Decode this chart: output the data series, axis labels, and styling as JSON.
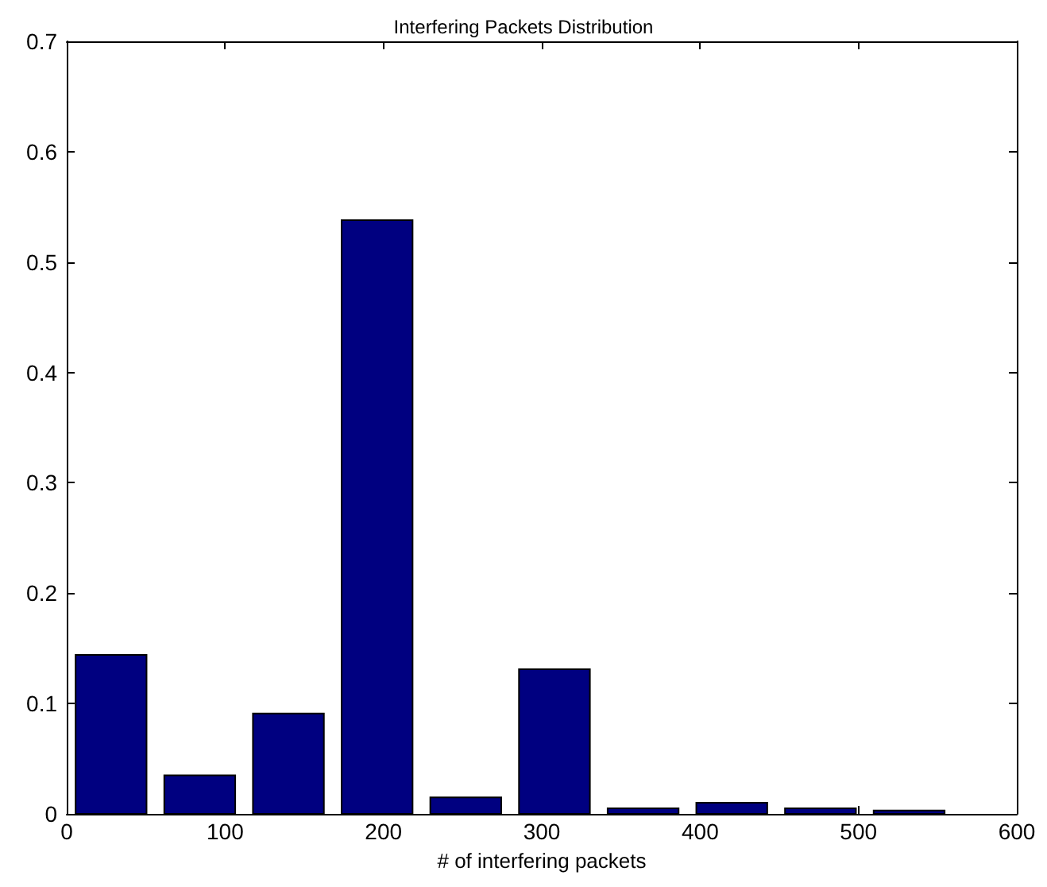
{
  "chart_data": {
    "type": "histogram",
    "title": "Interfering Packets Distribution",
    "xlabel": "# of interfering packets",
    "bins": [
      0,
      56,
      112,
      168,
      224,
      280,
      336,
      392,
      448,
      504,
      560
    ],
    "values": [
      0.144,
      0.035,
      0.091,
      0.538,
      0.015,
      0.131,
      0.005,
      0.01,
      0.005,
      0.003
    ],
    "color": "#000080",
    "xlim": [
      0,
      600
    ],
    "xticks": [
      0,
      100,
      200,
      300,
      400,
      500,
      600
    ],
    "ylim": [
      0,
      0.7
    ],
    "yticks": [
      0,
      0.1,
      0.2,
      0.3,
      0.4,
      0.5,
      0.6,
      0.7
    ],
    "grid": false
  }
}
